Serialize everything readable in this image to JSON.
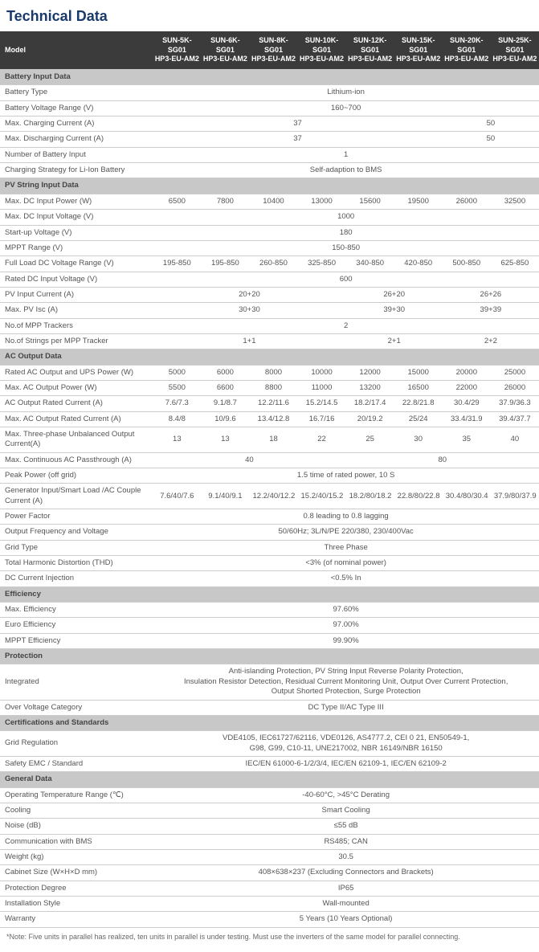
{
  "title": "Technical Data",
  "modelLabel": "Model",
  "models": [
    "SUN-5K-SG01 HP3-EU-AM2",
    "SUN-6K-SG01 HP3-EU-AM2",
    "SUN-8K-SG01 HP3-EU-AM2",
    "SUN-10K-SG01 HP3-EU-AM2",
    "SUN-12K-SG01 HP3-EU-AM2",
    "SUN-15K-SG01 HP3-EU-AM2",
    "SUN-20K-SG01 HP3-EU-AM2",
    "SUN-25K-SG01 HP3-EU-AM2"
  ],
  "sections": [
    {
      "name": "Battery Input Data",
      "rows": [
        {
          "label": "Battery Type",
          "cells": [
            {
              "span": 8,
              "v": "Lithium-ion"
            }
          ]
        },
        {
          "label": "Battery Voltage Range (V)",
          "cells": [
            {
              "span": 8,
              "v": "160~700"
            }
          ]
        },
        {
          "label": "Max. Charging Current (A)",
          "cells": [
            {
              "span": 6,
              "v": "37"
            },
            {
              "span": 2,
              "v": "50"
            }
          ]
        },
        {
          "label": "Max. Discharging Current (A)",
          "cells": [
            {
              "span": 6,
              "v": "37"
            },
            {
              "span": 2,
              "v": "50"
            }
          ]
        },
        {
          "label": "Number of Battery Input",
          "cells": [
            {
              "span": 8,
              "v": "1"
            }
          ]
        },
        {
          "label": "Charging Strategy for Li-Ion Battery",
          "cells": [
            {
              "span": 8,
              "v": "Self-adaption to BMS"
            }
          ]
        }
      ]
    },
    {
      "name": "PV String Input Data",
      "rows": [
        {
          "label": "Max. DC Input Power (W)",
          "cells": [
            {
              "v": "6500"
            },
            {
              "v": "7800"
            },
            {
              "v": "10400"
            },
            {
              "v": "13000"
            },
            {
              "v": "15600"
            },
            {
              "v": "19500"
            },
            {
              "v": "26000"
            },
            {
              "v": "32500"
            }
          ]
        },
        {
          "label": "Max. DC Input Voltage (V)",
          "cells": [
            {
              "span": 8,
              "v": "1000"
            }
          ]
        },
        {
          "label": "Start-up Voltage (V)",
          "cells": [
            {
              "span": 8,
              "v": "180"
            }
          ]
        },
        {
          "label": "MPPT Range (V)",
          "cells": [
            {
              "span": 8,
              "v": "150-850"
            }
          ]
        },
        {
          "label": "Full Load DC Voltage Range (V)",
          "cells": [
            {
              "v": "195-850"
            },
            {
              "v": "195-850"
            },
            {
              "v": "260-850"
            },
            {
              "v": "325-850"
            },
            {
              "v": "340-850"
            },
            {
              "v": "420-850"
            },
            {
              "v": "500-850"
            },
            {
              "v": "625-850"
            }
          ]
        },
        {
          "label": "Rated DC Input Voltage (V)",
          "cells": [
            {
              "span": 8,
              "v": "600"
            }
          ]
        },
        {
          "label": "PV Input Current (A)",
          "cells": [
            {
              "span": 4,
              "v": "20+20"
            },
            {
              "span": 2,
              "v": "26+20"
            },
            {
              "span": 2,
              "v": "26+26"
            }
          ]
        },
        {
          "label": "Max. PV Isc (A)",
          "cells": [
            {
              "span": 4,
              "v": "30+30"
            },
            {
              "span": 2,
              "v": "39+30"
            },
            {
              "span": 2,
              "v": "39+39"
            }
          ]
        },
        {
          "label": "No.of MPP Trackers",
          "cells": [
            {
              "span": 8,
              "v": "2"
            }
          ]
        },
        {
          "label": "No.of Strings per MPP Tracker",
          "cells": [
            {
              "span": 4,
              "v": "1+1"
            },
            {
              "span": 2,
              "v": "2+1"
            },
            {
              "span": 2,
              "v": "2+2"
            }
          ]
        }
      ]
    },
    {
      "name": "AC Output Data",
      "rows": [
        {
          "label": "Rated AC Output and UPS Power (W)",
          "cells": [
            {
              "v": "5000"
            },
            {
              "v": "6000"
            },
            {
              "v": "8000"
            },
            {
              "v": "10000"
            },
            {
              "v": "12000"
            },
            {
              "v": "15000"
            },
            {
              "v": "20000"
            },
            {
              "v": "25000"
            }
          ]
        },
        {
          "label": "Max. AC Output Power (W)",
          "cells": [
            {
              "v": "5500"
            },
            {
              "v": "6600"
            },
            {
              "v": "8800"
            },
            {
              "v": "11000"
            },
            {
              "v": "13200"
            },
            {
              "v": "16500"
            },
            {
              "v": "22000"
            },
            {
              "v": "26000"
            }
          ]
        },
        {
          "label": "AC Output Rated Current (A)",
          "cells": [
            {
              "v": "7.6/7.3"
            },
            {
              "v": "9.1/8.7"
            },
            {
              "v": "12.2/11.6"
            },
            {
              "v": "15.2/14.5"
            },
            {
              "v": "18.2/17.4"
            },
            {
              "v": "22.8/21.8"
            },
            {
              "v": "30.4/29"
            },
            {
              "v": "37.9/36.3"
            }
          ]
        },
        {
          "label": "Max. AC Output Rated Current (A)",
          "cells": [
            {
              "v": "8.4/8"
            },
            {
              "v": "10/9.6"
            },
            {
              "v": "13.4/12.8"
            },
            {
              "v": "16.7/16"
            },
            {
              "v": "20/19.2"
            },
            {
              "v": "25/24"
            },
            {
              "v": "33.4/31.9"
            },
            {
              "v": "39.4/37.7"
            }
          ]
        },
        {
          "label": "Max. Three-phase Unbalanced Output Current(A)",
          "cells": [
            {
              "v": "13"
            },
            {
              "v": "13"
            },
            {
              "v": "18"
            },
            {
              "v": "22"
            },
            {
              "v": "25"
            },
            {
              "v": "30"
            },
            {
              "v": "35"
            },
            {
              "v": "40"
            }
          ]
        },
        {
          "label": "Max. Continuous AC Passthrough (A)",
          "cells": [
            {
              "span": 4,
              "v": "40"
            },
            {
              "span": 4,
              "v": "80"
            }
          ]
        },
        {
          "label": "Peak Power (off grid)",
          "cells": [
            {
              "span": 8,
              "v": "1.5 time of rated power, 10 S"
            }
          ]
        },
        {
          "label": "Generator Input/Smart Load /AC Couple Current (A)",
          "cells": [
            {
              "v": "7.6/40/7.6"
            },
            {
              "v": "9.1/40/9.1"
            },
            {
              "v": "12.2/40/12.2"
            },
            {
              "v": "15.2/40/15.2"
            },
            {
              "v": "18.2/80/18.2"
            },
            {
              "v": "22.8/80/22.8"
            },
            {
              "v": "30.4/80/30.4"
            },
            {
              "v": "37.9/80/37.9"
            }
          ]
        },
        {
          "label": "Power Factor",
          "cells": [
            {
              "span": 8,
              "v": "0.8 leading to 0.8 lagging"
            }
          ]
        },
        {
          "label": "Output Frequency and Voltage",
          "cells": [
            {
              "span": 8,
              "v": "50/60Hz; 3L/N/PE  220/380, 230/400Vac"
            }
          ]
        },
        {
          "label": "Grid Type",
          "cells": [
            {
              "span": 8,
              "v": "Three Phase"
            }
          ]
        },
        {
          "label": "Total Harmonic Distortion (THD)",
          "cells": [
            {
              "span": 8,
              "v": "<3% (of nominal power)"
            }
          ]
        },
        {
          "label": "DC Current Injection",
          "cells": [
            {
              "span": 8,
              "v": "<0.5% In"
            }
          ]
        }
      ]
    },
    {
      "name": "Efficiency",
      "rows": [
        {
          "label": "Max. Efficiency",
          "cells": [
            {
              "span": 8,
              "v": "97.60%"
            }
          ]
        },
        {
          "label": "Euro Efficiency",
          "cells": [
            {
              "span": 8,
              "v": "97.00%"
            }
          ]
        },
        {
          "label": "MPPT Efficiency",
          "cells": [
            {
              "span": 8,
              "v": "99.90%"
            }
          ]
        }
      ]
    },
    {
      "name": "Protection",
      "rows": [
        {
          "label": "Integrated",
          "cells": [
            {
              "span": 8,
              "v": "Anti-islanding Protection, PV String Input Reverse Polarity Protection,\nInsulation Resistor Detection, Residual Current Monitoring Unit, Output Over Current Protection,\nOutput Shorted Protection, Surge Protection"
            }
          ]
        },
        {
          "label": "Over Voltage Category",
          "cells": [
            {
              "span": 8,
              "v": "DC Type II/AC Type III"
            }
          ]
        }
      ]
    },
    {
      "name": "Certifications and Standards",
      "rows": [
        {
          "label": "Grid Regulation",
          "cells": [
            {
              "span": 8,
              "v": "VDE4105, IEC61727/62116, VDE0126, AS4777.2, CEI 0 21, EN50549-1,\nG98, G99, C10-11, UNE217002, NBR 16149/NBR 16150"
            }
          ]
        },
        {
          "label": "Safety EMC / Standard",
          "cells": [
            {
              "span": 8,
              "v": "IEC/EN 61000-6-1/2/3/4, IEC/EN 62109-1, IEC/EN 62109-2"
            }
          ]
        }
      ]
    },
    {
      "name": "General Data",
      "rows": [
        {
          "label": "Operating Temperature Range (℃)",
          "cells": [
            {
              "span": 8,
              "v": "-40-60°C, >45°C Derating"
            }
          ]
        },
        {
          "label": "Cooling",
          "cells": [
            {
              "span": 8,
              "v": "Smart Cooling"
            }
          ]
        },
        {
          "label": "Noise (dB)",
          "cells": [
            {
              "span": 8,
              "v": "≤55 dB"
            }
          ]
        },
        {
          "label": "Communication with BMS",
          "cells": [
            {
              "span": 8,
              "v": "RS485; CAN"
            }
          ]
        },
        {
          "label": "Weight (kg)",
          "cells": [
            {
              "span": 8,
              "v": "30.5"
            }
          ]
        },
        {
          "label": "Cabinet Size (W×H×D mm)",
          "cells": [
            {
              "span": 8,
              "v": "408×638×237 (Excluding Connectors and Brackets)"
            }
          ]
        },
        {
          "label": "Protection Degree",
          "cells": [
            {
              "span": 8,
              "v": "IP65"
            }
          ]
        },
        {
          "label": "Installation Style",
          "cells": [
            {
              "span": 8,
              "v": "Wall-mounted"
            }
          ]
        },
        {
          "label": "Warranty",
          "cells": [
            {
              "span": 8,
              "v": "5 Years (10 Years Optional)"
            }
          ]
        }
      ]
    }
  ],
  "note": "*Note: Five units in parallel has realized, ten units in parallel is under testing. Must use the inverters of the same model for parallel connecting."
}
